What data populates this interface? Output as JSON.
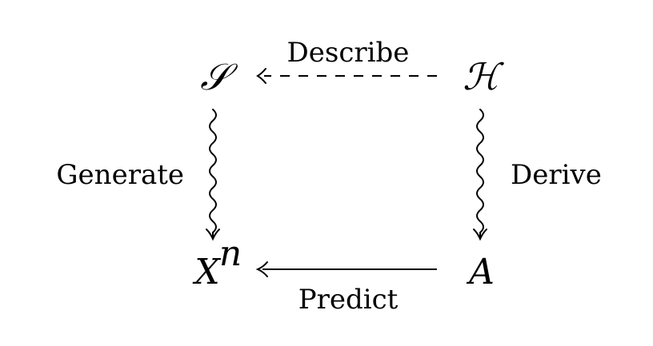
{
  "nodes": {
    "top_left": "𝒮",
    "top_right": "ℋ",
    "bottom_left_base": "X",
    "bottom_left_exponent": "n",
    "bottom_right": "A"
  },
  "edges": {
    "top": {
      "label": "Describe",
      "style": "dashed",
      "direction": "right-to-left"
    },
    "left": {
      "label": "Generate",
      "style": "wavy",
      "direction": "top-to-bottom"
    },
    "right": {
      "label": "Derive",
      "style": "wavy",
      "direction": "top-to-bottom"
    },
    "bottom": {
      "label": "Predict",
      "style": "solid",
      "direction": "right-to-left"
    }
  }
}
